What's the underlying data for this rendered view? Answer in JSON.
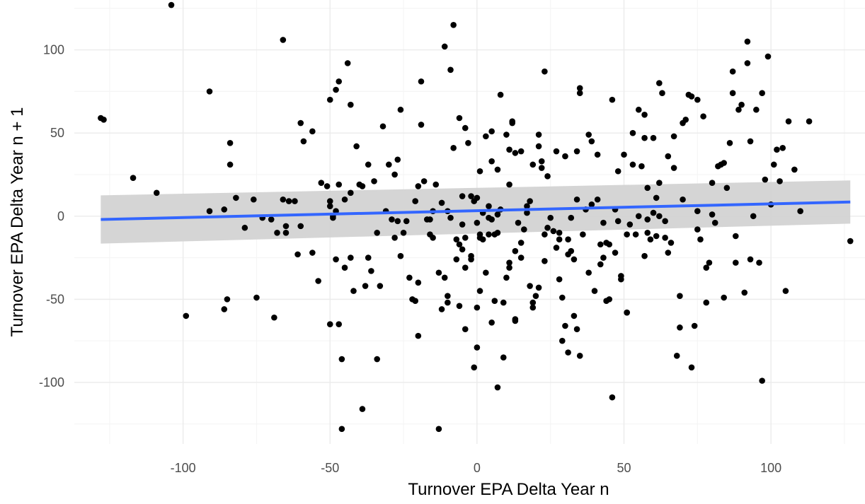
{
  "chart_data": {
    "type": "scatter",
    "xlabel": "Turnover EPA Delta Year n",
    "ylabel": "Turnover EPA Delta Year n + 1",
    "xlim": [
      -137,
      132
    ],
    "ylim": [
      -137,
      130
    ],
    "x_ticks": [
      -100,
      -50,
      0,
      50,
      100
    ],
    "y_ticks": [
      -100,
      -50,
      0,
      50,
      100
    ],
    "x_tick_labels": [
      "-100",
      "-50",
      "0",
      "50",
      "100"
    ],
    "y_tick_labels": [
      "-100",
      "-50",
      "0",
      "50",
      "100"
    ],
    "grid": true,
    "legend": "none",
    "colors": {
      "points": "#000000",
      "trend_line": "#3366FF",
      "confidence_band": "#D3D3D3",
      "grid_major": "#EBEBEB",
      "grid_minor": "#F5F5F5"
    },
    "trend": {
      "method": "linear fit",
      "x": [
        -128,
        127
      ],
      "y": [
        -2.0,
        8.5
      ],
      "ci_lower": [
        -16.5,
        -4.5
      ],
      "ci_upper": [
        12.5,
        21.5
      ]
    },
    "points": [
      [
        -128,
        59
      ],
      [
        -127,
        58
      ],
      [
        -117,
        23
      ],
      [
        -109,
        14
      ],
      [
        -104,
        127
      ],
      [
        -99,
        -60
      ],
      [
        -91,
        75
      ],
      [
        -91,
        3
      ],
      [
        -86,
        4
      ],
      [
        -86,
        -56
      ],
      [
        -85,
        -50
      ],
      [
        -84,
        44
      ],
      [
        -84,
        31
      ],
      [
        -82,
        11
      ],
      [
        -79,
        -7
      ],
      [
        -75,
        -49
      ],
      [
        -76,
        10
      ],
      [
        -73,
        -1
      ],
      [
        -70,
        -2
      ],
      [
        -69,
        -61
      ],
      [
        -68,
        -10
      ],
      [
        -66,
        106
      ],
      [
        -66,
        10
      ],
      [
        -65,
        -6
      ],
      [
        -65,
        -10
      ],
      [
        -64,
        9
      ],
      [
        -62,
        9
      ],
      [
        -61,
        -23
      ],
      [
        -60,
        -6
      ],
      [
        -60,
        56
      ],
      [
        -59,
        45
      ],
      [
        -56,
        51
      ],
      [
        -56,
        -22
      ],
      [
        -54,
        -39
      ],
      [
        -53,
        20
      ],
      [
        -51,
        18
      ],
      [
        -50,
        6
      ],
      [
        -50,
        9
      ],
      [
        -50,
        70
      ],
      [
        -50,
        -65
      ],
      [
        -49,
        -1
      ],
      [
        -49,
        0
      ],
      [
        -48,
        3
      ],
      [
        -48,
        -26
      ],
      [
        -48,
        76
      ],
      [
        -47,
        81
      ],
      [
        -47,
        19
      ],
      [
        -47,
        -65
      ],
      [
        -46,
        -86
      ],
      [
        -46,
        -128
      ],
      [
        -45,
        10
      ],
      [
        -45,
        -31
      ],
      [
        -44,
        92
      ],
      [
        -43,
        67
      ],
      [
        -43,
        14
      ],
      [
        -43,
        -25
      ],
      [
        -42,
        -45
      ],
      [
        -41,
        42
      ],
      [
        -40,
        19
      ],
      [
        -39,
        18
      ],
      [
        -39,
        -116
      ],
      [
        -38,
        -42
      ],
      [
        -37,
        -25
      ],
      [
        -37,
        31
      ],
      [
        -36,
        -33
      ],
      [
        -35,
        21
      ],
      [
        -34,
        -10
      ],
      [
        -34,
        -86
      ],
      [
        -33,
        -42
      ],
      [
        -32,
        54
      ],
      [
        -31,
        3
      ],
      [
        -30,
        31
      ],
      [
        -29,
        -2
      ],
      [
        -28,
        25
      ],
      [
        -28,
        -13
      ],
      [
        -27,
        34
      ],
      [
        -27,
        -3
      ],
      [
        -26,
        -24
      ],
      [
        -26,
        64
      ],
      [
        -25,
        -10
      ],
      [
        -24,
        -3
      ],
      [
        -23,
        -37
      ],
      [
        -22,
        -50
      ],
      [
        -21,
        -51
      ],
      [
        -21,
        9
      ],
      [
        -20,
        18
      ],
      [
        -20,
        -40
      ],
      [
        -20,
        -72
      ],
      [
        -19,
        81
      ],
      [
        -19,
        55
      ],
      [
        -18,
        21
      ],
      [
        -17,
        -2
      ],
      [
        -16,
        -11
      ],
      [
        -16,
        -2
      ],
      [
        -15,
        3
      ],
      [
        -15,
        -13
      ],
      [
        -14,
        19
      ],
      [
        -13,
        -34
      ],
      [
        -13,
        -128
      ],
      [
        -12,
        8
      ],
      [
        -12,
        -56
      ],
      [
        -11,
        102
      ],
      [
        -11,
        -37
      ],
      [
        -10,
        -52
      ],
      [
        -10,
        3
      ],
      [
        -10,
        -48
      ],
      [
        -9,
        -1
      ],
      [
        -9,
        88
      ],
      [
        -8,
        115
      ],
      [
        -8,
        41
      ],
      [
        -7,
        -14
      ],
      [
        -7,
        -26
      ],
      [
        -6,
        59
      ],
      [
        -6,
        -17
      ],
      [
        -6,
        -54
      ],
      [
        -5,
        12
      ],
      [
        -5,
        -5
      ],
      [
        -5,
        -20
      ],
      [
        -4,
        -68
      ],
      [
        -4,
        53
      ],
      [
        -4,
        -31
      ],
      [
        -4,
        -13
      ],
      [
        -3,
        44
      ],
      [
        -2,
        12
      ],
      [
        -2,
        -24
      ],
      [
        -2,
        -26
      ],
      [
        -1,
        9
      ],
      [
        -1,
        -91
      ],
      [
        0,
        -55
      ],
      [
        0,
        -79
      ],
      [
        0,
        11
      ],
      [
        0,
        -4
      ],
      [
        1,
        -11
      ],
      [
        1,
        -13
      ],
      [
        1,
        -45
      ],
      [
        1,
        27
      ],
      [
        2,
        -14
      ],
      [
        2,
        2
      ],
      [
        3,
        48
      ],
      [
        3,
        -34
      ],
      [
        4,
        6
      ],
      [
        4,
        -1
      ],
      [
        4,
        -11
      ],
      [
        5,
        33
      ],
      [
        5,
        -2
      ],
      [
        5,
        51
      ],
      [
        5,
        -64
      ],
      [
        6,
        -51
      ],
      [
        6,
        -11
      ],
      [
        7,
        28
      ],
      [
        7,
        1
      ],
      [
        7,
        -103
      ],
      [
        7,
        -10
      ],
      [
        8,
        4
      ],
      [
        8,
        73
      ],
      [
        9,
        -52
      ],
      [
        9,
        -85
      ],
      [
        10,
        49
      ],
      [
        10,
        -37
      ],
      [
        11,
        19
      ],
      [
        11,
        -28
      ],
      [
        11,
        40
      ],
      [
        11,
        -31
      ],
      [
        12,
        56
      ],
      [
        12,
        57
      ],
      [
        13,
        -21
      ],
      [
        13,
        -62
      ],
      [
        13,
        38
      ],
      [
        13,
        -63
      ],
      [
        14,
        -4
      ],
      [
        15,
        39
      ],
      [
        15,
        -16
      ],
      [
        15,
        -25
      ],
      [
        16,
        -8
      ],
      [
        17,
        2
      ],
      [
        17,
        6
      ],
      [
        18,
        9
      ],
      [
        18,
        -42
      ],
      [
        19,
        -55
      ],
      [
        19,
        -52
      ],
      [
        19,
        31
      ],
      [
        20,
        -48
      ],
      [
        21,
        -43
      ],
      [
        21,
        42
      ],
      [
        21,
        49
      ],
      [
        22,
        33
      ],
      [
        22,
        29
      ],
      [
        23,
        87
      ],
      [
        23,
        -27
      ],
      [
        23,
        -11
      ],
      [
        24,
        24
      ],
      [
        24,
        -7
      ],
      [
        25,
        -1
      ],
      [
        26,
        -9
      ],
      [
        27,
        39
      ],
      [
        27,
        -19
      ],
      [
        28,
        -10
      ],
      [
        28,
        -14
      ],
      [
        28,
        -38
      ],
      [
        29,
        -75
      ],
      [
        29,
        -49
      ],
      [
        30,
        -66
      ],
      [
        30,
        36
      ],
      [
        31,
        -23
      ],
      [
        31,
        -82
      ],
      [
        31,
        -14
      ],
      [
        32,
        -21
      ],
      [
        32,
        -1
      ],
      [
        33,
        -26
      ],
      [
        33,
        -60
      ],
      [
        34,
        10
      ],
      [
        34,
        39
      ],
      [
        34,
        -68
      ],
      [
        35,
        -84
      ],
      [
        35,
        74
      ],
      [
        35,
        77
      ],
      [
        36,
        -11
      ],
      [
        37,
        4
      ],
      [
        38,
        49
      ],
      [
        38,
        -34
      ],
      [
        39,
        7
      ],
      [
        39,
        45
      ],
      [
        40,
        -45
      ],
      [
        41,
        37
      ],
      [
        41,
        10
      ],
      [
        42,
        -29
      ],
      [
        42,
        -17
      ],
      [
        43,
        -4
      ],
      [
        43,
        -25
      ],
      [
        44,
        -16
      ],
      [
        44,
        -51
      ],
      [
        45,
        -50
      ],
      [
        45,
        -17
      ],
      [
        46,
        -109
      ],
      [
        46,
        70
      ],
      [
        47,
        -22
      ],
      [
        47,
        4
      ],
      [
        48,
        -3
      ],
      [
        48,
        27
      ],
      [
        49,
        -38
      ],
      [
        49,
        -36
      ],
      [
        50,
        37
      ],
      [
        51,
        -11
      ],
      [
        51,
        -58
      ],
      [
        51,
        -58
      ],
      [
        52,
        -5
      ],
      [
        53,
        31
      ],
      [
        53,
        50
      ],
      [
        54,
        -11
      ],
      [
        55,
        0
      ],
      [
        55,
        64
      ],
      [
        56,
        30
      ],
      [
        57,
        -24
      ],
      [
        57,
        47
      ],
      [
        57,
        61
      ],
      [
        58,
        17
      ],
      [
        58,
        -2
      ],
      [
        58,
        -10
      ],
      [
        59,
        -14
      ],
      [
        60,
        47
      ],
      [
        60,
        2
      ],
      [
        61,
        -12
      ],
      [
        61,
        11
      ],
      [
        62,
        20
      ],
      [
        62,
        0
      ],
      [
        62,
        80
      ],
      [
        63,
        74
      ],
      [
        64,
        -3
      ],
      [
        64,
        -13
      ],
      [
        65,
        36
      ],
      [
        65,
        -22
      ],
      [
        66,
        -16
      ],
      [
        67,
        29
      ],
      [
        67,
        48
      ],
      [
        68,
        -84
      ],
      [
        69,
        -48
      ],
      [
        69,
        -67
      ],
      [
        70,
        56
      ],
      [
        70,
        10
      ],
      [
        71,
        58
      ],
      [
        72,
        73
      ],
      [
        73,
        -91
      ],
      [
        73,
        72
      ],
      [
        74,
        -66
      ],
      [
        75,
        -8
      ],
      [
        75,
        3
      ],
      [
        75,
        70
      ],
      [
        76,
        -14
      ],
      [
        77,
        60
      ],
      [
        78,
        -31
      ],
      [
        78,
        -52
      ],
      [
        79,
        -28
      ],
      [
        80,
        1
      ],
      [
        80,
        20
      ],
      [
        81,
        -4
      ],
      [
        82,
        30
      ],
      [
        83,
        31
      ],
      [
        84,
        -49
      ],
      [
        84,
        32
      ],
      [
        85,
        17
      ],
      [
        86,
        44
      ],
      [
        87,
        87
      ],
      [
        87,
        74
      ],
      [
        88,
        -12
      ],
      [
        88,
        -28
      ],
      [
        89,
        64
      ],
      [
        90,
        67
      ],
      [
        91,
        -46
      ],
      [
        92,
        105
      ],
      [
        92,
        92
      ],
      [
        93,
        -26
      ],
      [
        93,
        45
      ],
      [
        94,
        0
      ],
      [
        95,
        64
      ],
      [
        96,
        -28
      ],
      [
        97,
        74
      ],
      [
        97,
        -99
      ],
      [
        98,
        22
      ],
      [
        99,
        96
      ],
      [
        100,
        7
      ],
      [
        101,
        31
      ],
      [
        102,
        40
      ],
      [
        103,
        21
      ],
      [
        104,
        41
      ],
      [
        105,
        -45
      ],
      [
        106,
        57
      ],
      [
        108,
        28
      ],
      [
        110,
        3
      ],
      [
        113,
        57
      ],
      [
        127,
        -15
      ]
    ]
  }
}
